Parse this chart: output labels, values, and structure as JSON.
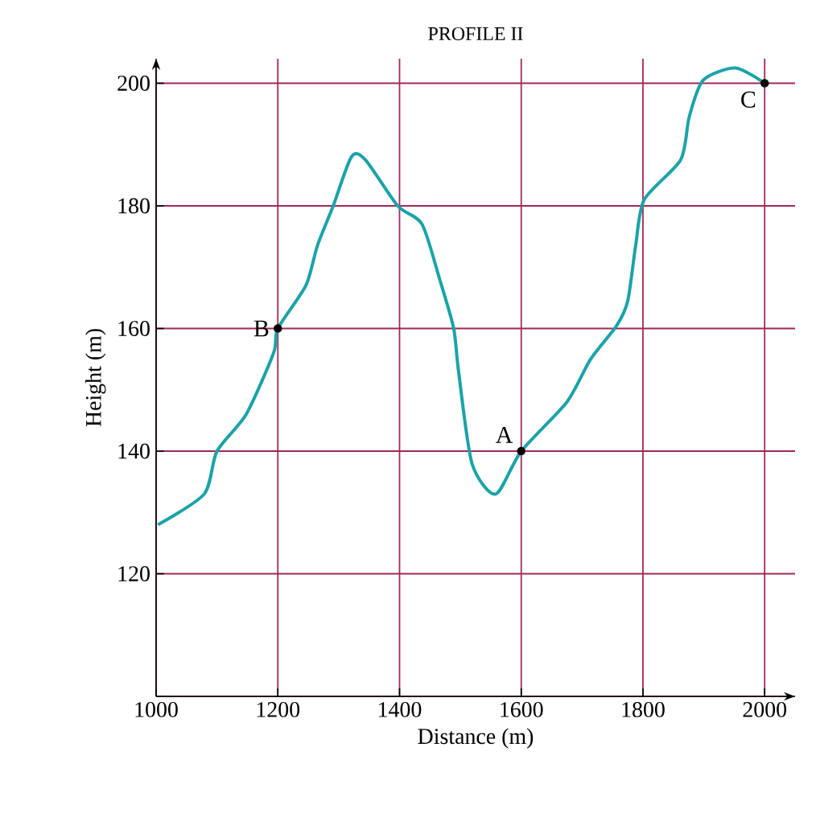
{
  "chart_data": {
    "type": "line",
    "title": "PROFILE II",
    "xlabel": "Distance (m)",
    "ylabel": "Height (m)",
    "xlim": [
      1000,
      2050
    ],
    "ylim": [
      100,
      204
    ],
    "xticks": [
      1000,
      1200,
      1400,
      1600,
      1800,
      2000
    ],
    "yticks": [
      {
        "value": 100,
        "label": null
      },
      120,
      140,
      160,
      180,
      200
    ],
    "grid": true,
    "marker": "none",
    "line_style": "solid",
    "series": [
      {
        "color": "#1aa3a8",
        "x": [
          1003,
          1079,
          1100,
          1148,
          1193,
          1200,
          1246,
          1265,
          1291,
          1321,
          1344,
          1397,
          1437,
          1466,
          1489,
          1497,
          1519,
          1558,
          1600,
          1675,
          1714,
          1757,
          1775,
          1788,
          1802,
          1862,
          1876,
          1899,
          1952,
          2000
        ],
        "values": [
          128,
          133,
          140,
          146,
          156,
          160,
          167,
          173.5,
          180,
          188,
          187.5,
          180,
          177,
          168,
          160,
          153,
          138,
          133,
          140,
          148,
          155,
          160.5,
          164.5,
          173.5,
          181,
          187.5,
          194.5,
          200.5,
          202.5,
          200
        ]
      }
    ],
    "annotations": [
      {
        "text": "A",
        "x": 1600,
        "y": 140
      },
      {
        "text": "B",
        "x": 1200,
        "y": 160
      },
      {
        "text": "C",
        "x": 2000,
        "y": 200
      }
    ]
  }
}
